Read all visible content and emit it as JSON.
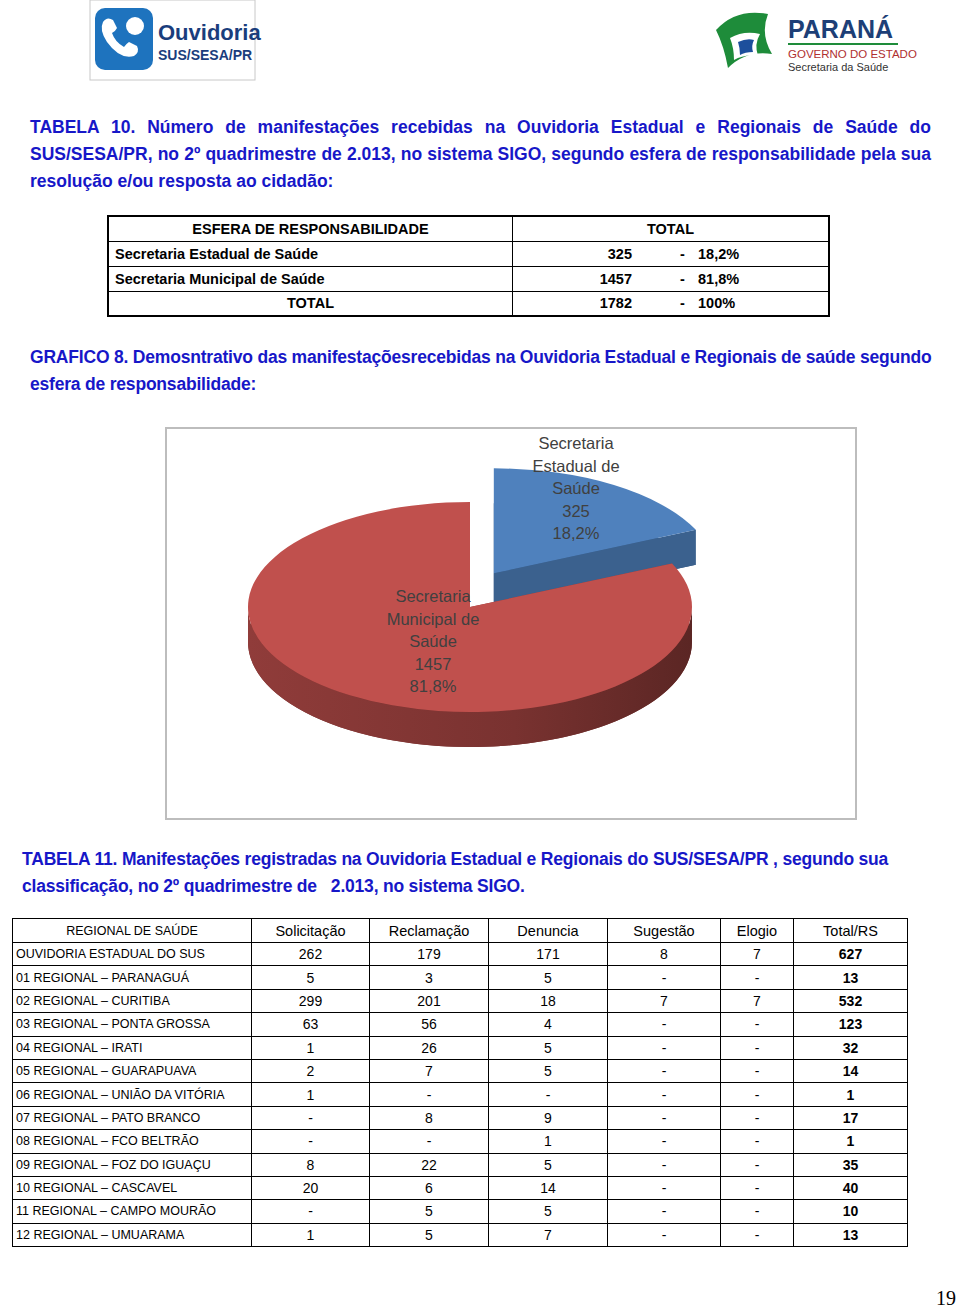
{
  "header": {
    "left_logo": [
      "Ouvidoria",
      "SUS/SESA/PR"
    ],
    "right_logo": [
      "PARANÁ",
      "GOVERNO DO ESTADO",
      "Secretaria da Saúde"
    ]
  },
  "table10": {
    "title": "TABELA 10. Número de manifestações recebidas na Ouvidoria Estadual e Regionais de Saúde do SUS/SESA/PR, no 2º quadrimestre de 2.013, no sistema SIGO, segundo esfera de responsabilidade pela sua resolução e/ou resposta ao cidadão:",
    "columns": [
      "ESFERA DE RESPONSABILIDADE",
      "TOTAL"
    ],
    "rows": [
      [
        "Secretaria Estadual de Saúde",
        "325",
        "-",
        "18,2%"
      ],
      [
        "Secretaria Municipal de Saúde",
        "1457",
        "-",
        "81,8%"
      ],
      [
        "TOTAL",
        "1782",
        "-",
        "100%"
      ]
    ]
  },
  "chart_data": {
    "type": "pie",
    "title": "GRAFICO 8. Demosntrativo das manifestaçõesrecebidas na Ouvidoria Estadual e Regionais de saúde segundo esfera de responsabilidade:",
    "categories": [
      "Secretaria Estadual de Saúde",
      "Secretaria Municipal de Saúde"
    ],
    "values": [
      325,
      1457
    ],
    "percent": [
      18.2,
      81.8
    ],
    "percent_labels": [
      "18,2%",
      "81,8%"
    ],
    "colors": [
      "#4f81bd",
      "#c0504d"
    ],
    "data_labels": true
  },
  "table11": {
    "title": "TABELA 11. Manifestações registradas na Ouvidoria Estadual e Regionais do SUS/SESA/PR , segundo sua classificação, no 2º quadrimestre de   2.013, no sistema SIGO.",
    "columns": [
      "REGIONAL DE SAÚDE",
      "Solicitação",
      "Reclamação",
      "Denuncia",
      "Sugestão",
      "Elogio",
      "Total/RS"
    ],
    "rows": [
      [
        "OUVIDORIA ESTADUAL DO SUS",
        "262",
        "179",
        "171",
        "8",
        "7",
        "627"
      ],
      [
        "01 REGIONAL – PARANAGUÁ",
        "5",
        "3",
        "5",
        "-",
        "-",
        "13"
      ],
      [
        "02 REGIONAL – CURITIBA",
        "299",
        "201",
        "18",
        "7",
        "7",
        "532"
      ],
      [
        "03 REGIONAL – PONTA GROSSA",
        "63",
        "56",
        "4",
        "-",
        "-",
        "123"
      ],
      [
        "04 REGIONAL – IRATI",
        "1",
        "26",
        "5",
        "-",
        "-",
        "32"
      ],
      [
        "05 REGIONAL – GUARAPUAVA",
        "2",
        "7",
        "5",
        "-",
        "-",
        "14"
      ],
      [
        "06 REGIONAL – UNIÃO DA VITÓRIA",
        "1",
        "-",
        "-",
        "-",
        "-",
        "1"
      ],
      [
        "07 REGIONAL – PATO BRANCO",
        "-",
        "8",
        "9",
        "-",
        "-",
        "17"
      ],
      [
        "08 REGIONAL – FCO BELTRÃO",
        "-",
        "-",
        "1",
        "-",
        "-",
        "1"
      ],
      [
        "09 REGIONAL – FOZ DO IGUAÇU",
        "8",
        "22",
        "5",
        "-",
        "-",
        "35"
      ],
      [
        "10 REGIONAL – CASCAVEL",
        "20",
        "6",
        "14",
        "-",
        "-",
        "40"
      ],
      [
        "11 REGIONAL – CAMPO MOURÃO",
        "-",
        "5",
        "5",
        "-",
        "-",
        "10"
      ],
      [
        "12 REGIONAL – UMUARAMA",
        "1",
        "5",
        "7",
        "-",
        "-",
        "13"
      ]
    ]
  },
  "page_number": "19"
}
